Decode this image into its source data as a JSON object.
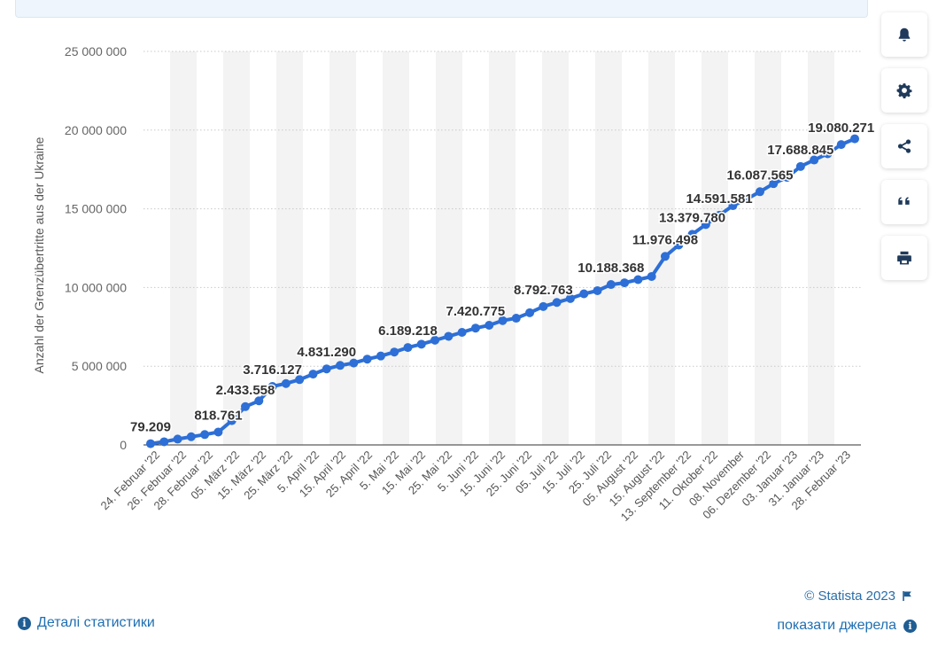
{
  "chart_data": {
    "type": "line",
    "ylabel": "Anzahl der Grenzübertritte aus der Ukraine",
    "ylim": [
      0,
      25000000
    ],
    "yticks": [
      0,
      5000000,
      10000000,
      15000000,
      20000000,
      25000000
    ],
    "ytick_labels": [
      "0",
      "5 000 000",
      "10 000 000",
      "15 000 000",
      "20 000 000",
      "25 000 000"
    ],
    "xtick_labels": [
      "24. Februar '22",
      "26. Februar '22",
      "28. Februar '22",
      "05. März '22",
      "15. März '22",
      "25. März '22",
      "5. April '22",
      "15. April '22",
      "25. April '22",
      "5. Mai '22",
      "15. Mai '22",
      "25. Mai '22",
      "5. Juni '22",
      "15. Juni '22",
      "25. Juni '22",
      "05. Juli '22",
      "15. Juli '22",
      "25. Juli '22",
      "05. August '22",
      "15. August '22",
      "13. September '22",
      "11. Oktober '22",
      "08. November",
      "06. Dezember '22",
      "03. Januar '23",
      "31. Januar '23",
      "28. Februar '23"
    ],
    "grid": true,
    "legend": "none",
    "line_color": "#2d6fd6",
    "values": [
      79209,
      200000,
      370000,
      520000,
      660000,
      818761,
      1540000,
      2433558,
      2800000,
      3716127,
      3900000,
      4150000,
      4500000,
      4831290,
      5050000,
      5200000,
      5450000,
      5650000,
      5900000,
      6189218,
      6400000,
      6650000,
      6900000,
      7150000,
      7420775,
      7600000,
      7900000,
      8050000,
      8400000,
      8792763,
      9050000,
      9300000,
      9600000,
      9800000,
      10188368,
      10300000,
      10500000,
      10700000,
      11976498,
      12700000,
      13379780,
      14000000,
      14591581,
      15200000,
      15600000,
      16087565,
      16600000,
      17000000,
      17688845,
      18100000,
      18500000,
      19080271,
      19450000
    ],
    "data_labels": [
      {
        "index": 0,
        "text": "79.209"
      },
      {
        "index": 5,
        "text": "818.761"
      },
      {
        "index": 7,
        "text": "2.433.558"
      },
      {
        "index": 9,
        "text": "3.716.127"
      },
      {
        "index": 13,
        "text": "4.831.290"
      },
      {
        "index": 19,
        "text": "6.189.218"
      },
      {
        "index": 24,
        "text": "7.420.775"
      },
      {
        "index": 29,
        "text": "8.792.763"
      },
      {
        "index": 34,
        "text": "10.188.368"
      },
      {
        "index": 38,
        "text": "11.976.498"
      },
      {
        "index": 40,
        "text": "13.379.780"
      },
      {
        "index": 42,
        "text": "14.591.581"
      },
      {
        "index": 45,
        "text": "16.087.565"
      },
      {
        "index": 48,
        "text": "17.688.845"
      },
      {
        "index": 51,
        "text": "19.080.271"
      }
    ]
  },
  "footer": {
    "credit": "© Statista 2023",
    "details_link": "Деталі статистики",
    "sources_link": "показати джерела"
  },
  "toolbar": {
    "icons": [
      "bell-icon",
      "gear-icon",
      "share-icon",
      "quote-icon",
      "print-icon"
    ]
  },
  "colors": {
    "accent": "#2d6fd6",
    "link": "#1f6fb2",
    "band": "#f3f3f3"
  }
}
